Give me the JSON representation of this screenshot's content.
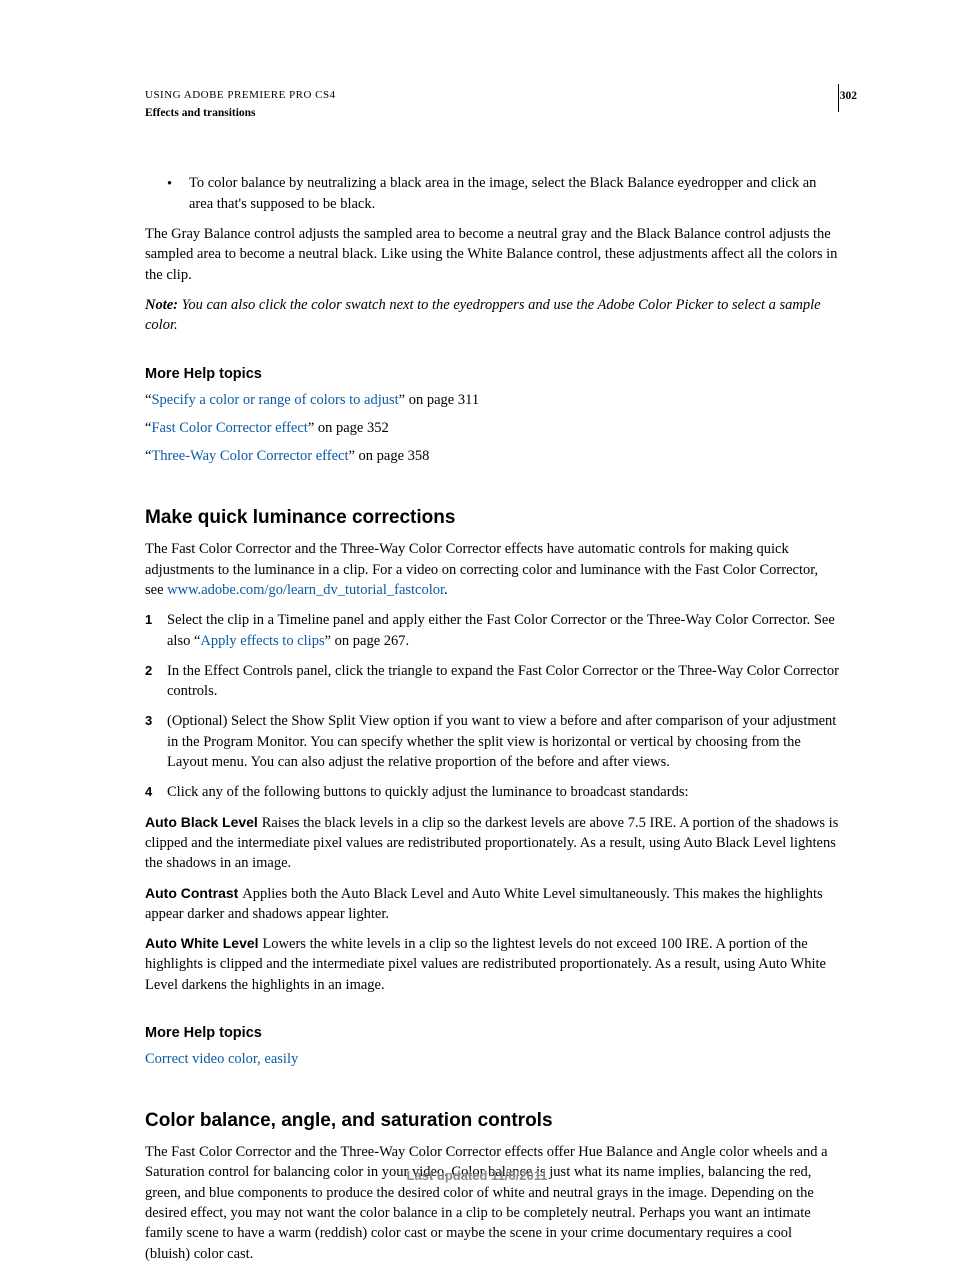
{
  "header": {
    "title": "USING ADOBE PREMIERE PRO CS4",
    "subtitle": "Effects and transitions",
    "pageNumber": "302"
  },
  "bullet1": {
    "marker": "•",
    "text": "To color balance by neutralizing a black area in the image, select the Black Balance eyedropper and click an area that's supposed to be black."
  },
  "para1": "The Gray Balance control adjusts the sampled area to become a neutral gray and the Black Balance control adjusts the sampled area to become a neutral black. Like using the White Balance control, these adjustments affect all the colors in the clip.",
  "note": {
    "label": "Note: ",
    "text": "You can also click the color swatch next to the eyedroppers and use the Adobe Color Picker to select a sample color."
  },
  "moreHelp1": {
    "heading": "More Help topics",
    "q": "“",
    "qc": "”",
    "link1": "Specify a color or range of colors to adjust",
    "suffix1": " on page 311",
    "link2": "Fast Color Corrector effect",
    "suffix2": " on page 352",
    "link3": "Three-Way Color Corrector effect",
    "suffix3": " on page 358"
  },
  "section1": {
    "heading": "Make quick luminance corrections",
    "intro_a": "The Fast Color Corrector and the Three-Way Color Corrector effects have automatic controls for making quick adjustments to the luminance in a clip. For a video on correcting color and luminance with the Fast Color Corrector, see ",
    "intro_link": "www.adobe.com/go/learn_dv_tutorial_fastcolor",
    "intro_b": ".",
    "step1": {
      "n": "1",
      "a": "Select the clip in a Timeline panel and apply either the Fast Color Corrector or the Three-Way Color Corrector. See also “",
      "link": "Apply effects to clips",
      "b": "” on page 267."
    },
    "step2": {
      "n": "2",
      "text": "In the Effect Controls panel, click the triangle to expand the Fast Color Corrector or the Three-Way Color Corrector controls."
    },
    "step3": {
      "n": "3",
      "text": "(Optional) Select the Show Split View option if you want to view a before and after comparison of your adjustment in the Program Monitor. You can specify whether the split view is horizontal or vertical by choosing from the Layout menu. You can also adjust the relative proportion of the before and after views."
    },
    "step4": {
      "n": "4",
      "text": "Click any of the following buttons to quickly adjust the luminance to broadcast standards:"
    },
    "def1": {
      "term": "Auto Black Level ",
      "text": " Raises the black levels in a clip so the darkest levels are above 7.5 IRE. A portion of the shadows is clipped and the intermediate pixel values are redistributed proportionately. As a result, using Auto Black Level lightens the shadows in an image."
    },
    "def2": {
      "term": "Auto Contrast ",
      "text": " Applies both the Auto Black Level and Auto White Level simultaneously. This makes the highlights appear darker and shadows appear lighter."
    },
    "def3": {
      "term": "Auto White Level ",
      "text": " Lowers the white levels in a clip so the lightest levels do not exceed 100 IRE. A portion of the highlights is clipped and the intermediate pixel values are redistributed proportionately. As a result, using Auto White Level darkens the highlights in an image."
    }
  },
  "moreHelp2": {
    "heading": "More Help topics",
    "link": "Correct video color, easily"
  },
  "section2": {
    "heading": "Color balance, angle, and saturation controls",
    "para": "The Fast Color Corrector and the Three-Way Color Corrector effects offer Hue Balance and Angle color wheels and a Saturation control for balancing color in your video. Color balance is just what its name implies, balancing the red, green, and blue components to produce the desired color of white and neutral grays in the image. Depending on the desired effect, you may not want the color balance in a clip to be completely neutral. Perhaps you want an intimate family scene to have a warm (reddish) color cast or maybe the scene in your crime documentary requires a cool (bluish) color cast."
  },
  "footer": "Last updated 11/6/2011"
}
